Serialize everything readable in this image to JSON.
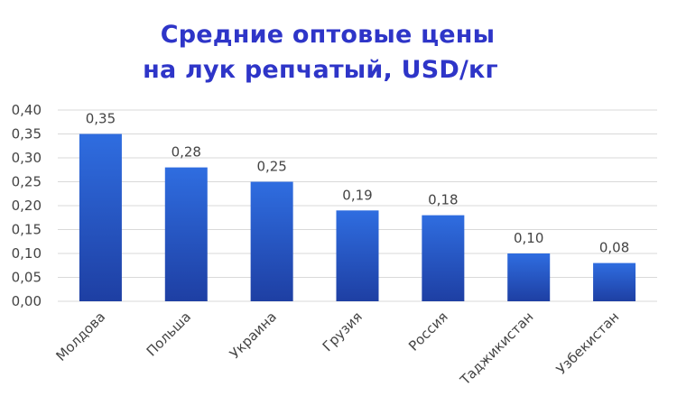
{
  "chart_data": {
    "type": "bar",
    "title_lines": [
      "Средние оптовые цены",
      "на лук репчатый, USD/кг"
    ],
    "categories": [
      "Молдова",
      "Польша",
      "Украина",
      "Грузия",
      "Россия",
      "Таджикистан",
      "Узбекистан"
    ],
    "values": [
      0.35,
      0.28,
      0.25,
      0.19,
      0.18,
      0.1,
      0.08
    ],
    "data_labels": [
      "0,35",
      "0,28",
      "0,25",
      "0,19",
      "0,18",
      "0,10",
      "0,08"
    ],
    "yticks": [
      0.0,
      0.05,
      0.1,
      0.15,
      0.2,
      0.25,
      0.3,
      0.35,
      0.4
    ],
    "ytick_labels": [
      "0,00",
      "0,05",
      "0,10",
      "0,15",
      "0,20",
      "0,25",
      "0,30",
      "0,35",
      "0,40"
    ],
    "ylim": [
      0,
      0.4
    ],
    "grid": true,
    "legend": false,
    "colors": {
      "bar_top": "#2F6DE0",
      "bar_bottom": "#1E3FA3",
      "grid": "#D9D9D9",
      "title": "#2E35C8"
    }
  }
}
